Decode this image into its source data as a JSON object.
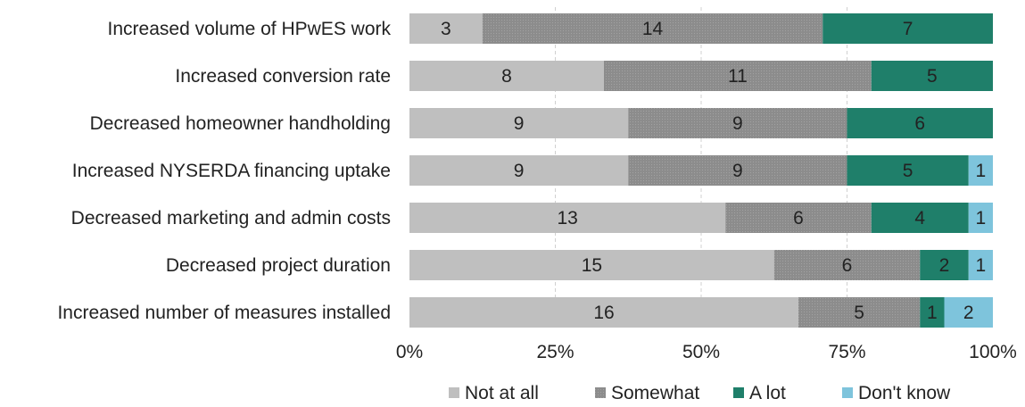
{
  "chart_data": {
    "type": "bar",
    "orientation": "horizontal",
    "stacked": "percent",
    "categories": [
      "Increased volume of HPwES work",
      "Increased conversion rate",
      "Decreased  homeowner handholding",
      "Increased NYSERDA financing uptake",
      "Decreased marketing and admin costs",
      "Decreased project duration",
      "Increased number of measures installed"
    ],
    "series": [
      {
        "name": "Not at all",
        "color": "#bfbfbf",
        "values": [
          3,
          8,
          9,
          9,
          13,
          15,
          16
        ]
      },
      {
        "name": "Somewhat",
        "color": "#8c8c8c",
        "values": [
          14,
          11,
          9,
          9,
          6,
          6,
          5
        ]
      },
      {
        "name": "A lot",
        "color": "#1f7f6a",
        "values": [
          7,
          5,
          6,
          5,
          4,
          2,
          1
        ]
      },
      {
        "name": "Don't know",
        "color": "#7ec4dc",
        "values": [
          0,
          0,
          0,
          1,
          1,
          1,
          2
        ]
      }
    ],
    "x_ticks": [
      "0%",
      "25%",
      "50%",
      "75%",
      "100%"
    ],
    "xlim": [
      0,
      100
    ],
    "grid": "vertical dashed",
    "legend": "bottom"
  }
}
